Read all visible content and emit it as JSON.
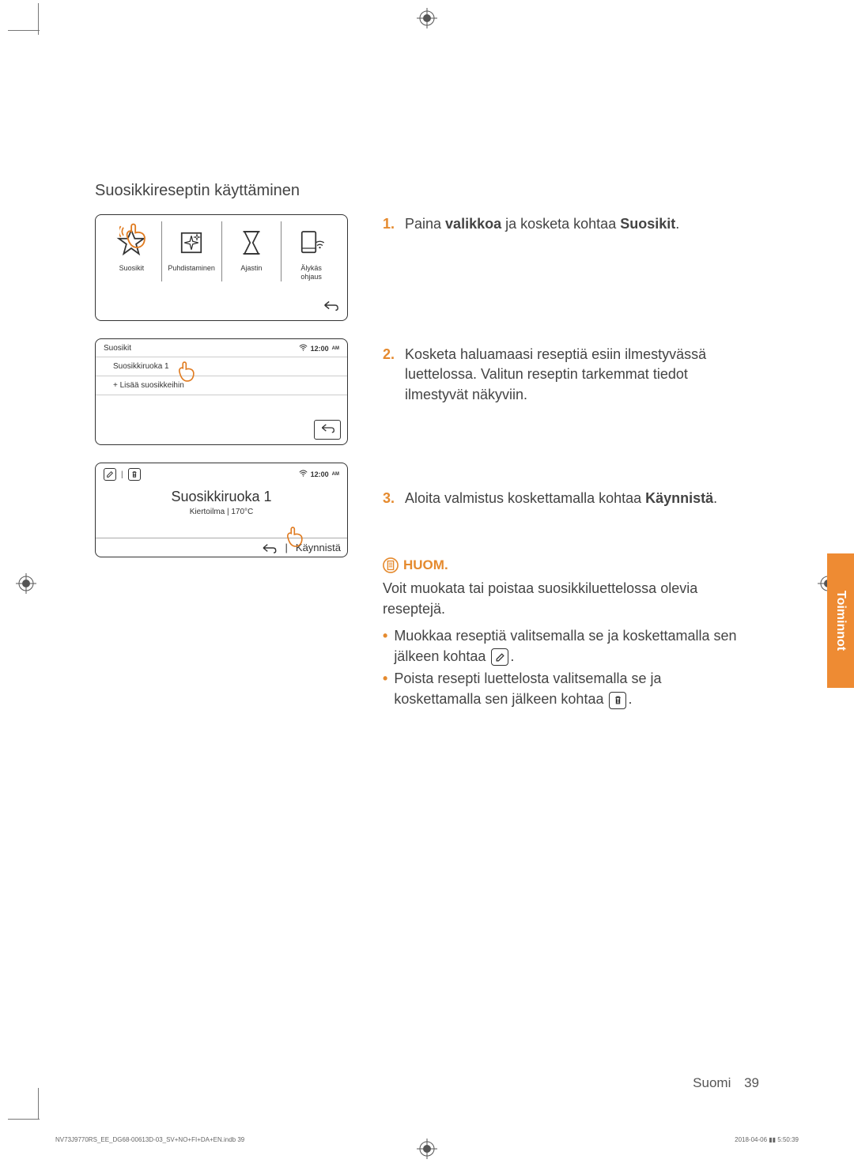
{
  "section_title": "Suosikkireseptin käyttäminen",
  "colors": {
    "accent": "#e58a2e",
    "tab_bg": "#ee8b33",
    "text": "#444444",
    "border": "#333333"
  },
  "screen1": {
    "icons": [
      {
        "name": "suosikit-icon",
        "label": "Suosikit"
      },
      {
        "name": "puhdistaminen-icon",
        "label": "Puhdistaminen"
      },
      {
        "name": "ajastin-icon",
        "label": "Ajastin"
      },
      {
        "name": "alykas-ohjaus-icon",
        "label": "Älykäs\nohjaus"
      }
    ]
  },
  "screen2": {
    "header": "Suosikit",
    "time": "12:00",
    "ampm": "AM",
    "items": [
      "Suosikkiruoka 1",
      "+  Lisää suosikkeihin"
    ]
  },
  "screen3": {
    "time": "12:00",
    "ampm": "AM",
    "title": "Suosikkiruoka 1",
    "subtitle": "Kiertoilma | 170°C",
    "start": "Käynnistä"
  },
  "steps": [
    {
      "n": "1.",
      "html": "Paina <strong>valikkoa</strong> ja kosketa kohtaa <strong>Suosikit</strong>."
    },
    {
      "n": "2.",
      "html": "Kosketa haluamaasi reseptiä esiin ilmestyvässä luettelossa. Valitun reseptin tarkemmat tiedot ilmestyvät näkyviin."
    },
    {
      "n": "3.",
      "html": "Aloita valmistus koskettamalla kohtaa <strong>Käynnistä</strong>."
    }
  ],
  "huom": {
    "label": "HUOM.",
    "body": "Voit muokata tai poistaa suosikkiluettelossa olevia reseptejä.",
    "items": [
      {
        "text_before": "Muokkaa reseptiä valitsemalla se ja koskettamalla sen jälkeen kohtaa ",
        "icon": "edit",
        "text_after": "."
      },
      {
        "text_before": "Poista resepti luettelosta valitsemalla se ja koskettamalla sen jälkeen kohtaa ",
        "icon": "trash",
        "text_after": "."
      }
    ]
  },
  "side_tab": "Toiminnot",
  "footer": {
    "lang": "Suomi",
    "page": "39"
  },
  "tiny_footer": {
    "left": "NV73J9770RS_EE_DG68-00613D-03_SV+NO+FI+DA+EN.indb   39",
    "right": "2018-04-06   ▮▮ 5:50:39"
  }
}
